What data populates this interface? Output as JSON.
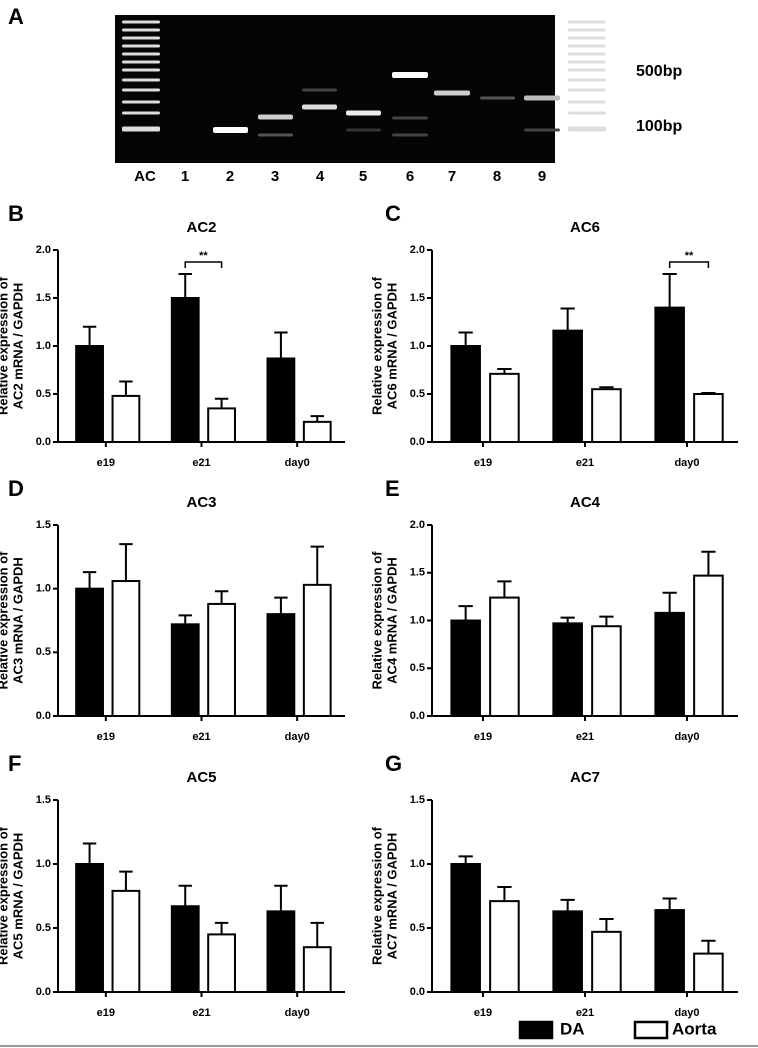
{
  "panel_a": {
    "panel": "A",
    "lanes": [
      "AC",
      "1",
      "2",
      "3",
      "4",
      "5",
      "6",
      "7",
      "8",
      "9"
    ],
    "markers": [
      "500bp",
      "100bp"
    ]
  },
  "chart_data": [
    {
      "panel": "B",
      "type": "bar",
      "title": "AC2",
      "y_label": [
        "Relative expression of",
        "AC2 mRNA / GAPDH"
      ],
      "categories": [
        "e19",
        "e21",
        "day0"
      ],
      "series": [
        {
          "color": "#000000",
          "values": [
            1.0,
            1.5,
            0.87
          ],
          "errors": [
            0.2,
            0.25,
            0.27
          ]
        },
        {
          "color": "#ffffff",
          "values": [
            0.48,
            0.35,
            0.21
          ],
          "errors": [
            0.15,
            0.1,
            0.06
          ]
        }
      ],
      "significance": [
        null,
        "**",
        null
      ],
      "ylim": [
        0,
        2
      ],
      "yticks": [
        {
          "value": 0,
          "label": "0.0"
        },
        {
          "value": 0.5,
          "label": "0.5"
        },
        {
          "value": 1,
          "label": "1.0"
        },
        {
          "value": 1.5,
          "label": "1.5"
        },
        {
          "value": 2,
          "label": "2.0"
        }
      ]
    },
    {
      "panel": "C",
      "type": "bar",
      "title": "AC6",
      "y_label": [
        "Relative expression of",
        "AC6 mRNA / GAPDH"
      ],
      "categories": [
        "e19",
        "e21",
        "day0"
      ],
      "series": [
        {
          "color": "#000000",
          "values": [
            1.0,
            1.16,
            1.4
          ],
          "errors": [
            0.14,
            0.23,
            0.35
          ]
        },
        {
          "color": "#ffffff",
          "values": [
            0.71,
            0.55,
            0.5
          ],
          "errors": [
            0.05,
            0.02,
            0.01
          ]
        }
      ],
      "significance": [
        null,
        null,
        "**"
      ],
      "ylim": [
        0,
        2
      ],
      "yticks": [
        {
          "value": 0,
          "label": "0.0"
        },
        {
          "value": 0.5,
          "label": "0.5"
        },
        {
          "value": 1,
          "label": "1.0"
        },
        {
          "value": 1.5,
          "label": "1.5"
        },
        {
          "value": 2,
          "label": "2.0"
        }
      ]
    },
    {
      "panel": "D",
      "type": "bar",
      "title": "AC3",
      "y_label": [
        "Relative expression of",
        "AC3 mRNA / GAPDH"
      ],
      "categories": [
        "e19",
        "e21",
        "day0"
      ],
      "series": [
        {
          "color": "#000000",
          "values": [
            1.0,
            0.72,
            0.8
          ],
          "errors": [
            0.13,
            0.07,
            0.13
          ]
        },
        {
          "color": "#ffffff",
          "values": [
            1.06,
            0.88,
            1.03
          ],
          "errors": [
            0.29,
            0.1,
            0.3
          ]
        }
      ],
      "ylim": [
        0,
        1.5
      ],
      "yticks": [
        {
          "value": 0,
          "label": "0.0"
        },
        {
          "value": 0.5,
          "label": "0.5"
        },
        {
          "value": 1,
          "label": "1.0"
        },
        {
          "value": 1.5,
          "label": "1.5"
        }
      ]
    },
    {
      "panel": "E",
      "type": "bar",
      "title": "AC4",
      "y_label": [
        "Relative expression of",
        "AC4 mRNA / GAPDH"
      ],
      "categories": [
        "e19",
        "e21",
        "day0"
      ],
      "series": [
        {
          "color": "#000000",
          "values": [
            1.0,
            0.97,
            1.08
          ],
          "errors": [
            0.15,
            0.06,
            0.21
          ]
        },
        {
          "color": "#ffffff",
          "values": [
            1.24,
            0.94,
            1.47
          ],
          "errors": [
            0.17,
            0.1,
            0.25
          ]
        }
      ],
      "ylim": [
        0,
        2
      ],
      "yticks": [
        {
          "value": 0,
          "label": "0.0"
        },
        {
          "value": 0.5,
          "label": "0.5"
        },
        {
          "value": 1,
          "label": "1.0"
        },
        {
          "value": 1.5,
          "label": "1.5"
        },
        {
          "value": 2,
          "label": "2.0"
        }
      ]
    },
    {
      "panel": "F",
      "type": "bar",
      "title": "AC5",
      "y_label": [
        "Relative expression of",
        "AC5 mRNA / GAPDH"
      ],
      "categories": [
        "e19",
        "e21",
        "day0"
      ],
      "series": [
        {
          "color": "#000000",
          "values": [
            1.0,
            0.67,
            0.63
          ],
          "errors": [
            0.16,
            0.16,
            0.2
          ]
        },
        {
          "color": "#ffffff",
          "values": [
            0.79,
            0.45,
            0.35
          ],
          "errors": [
            0.15,
            0.09,
            0.19
          ]
        }
      ],
      "ylim": [
        0,
        1.5
      ],
      "yticks": [
        {
          "value": 0,
          "label": "0.0"
        },
        {
          "value": 0.5,
          "label": "0.5"
        },
        {
          "value": 1,
          "label": "1.0"
        },
        {
          "value": 1.5,
          "label": "1.5"
        }
      ]
    },
    {
      "panel": "G",
      "type": "bar",
      "title": "AC7",
      "y_label": [
        "Relative expression of",
        "AC7 mRNA / GAPDH"
      ],
      "categories": [
        "e19",
        "e21",
        "day0"
      ],
      "series": [
        {
          "name": "DA",
          "color": "#000000",
          "values": [
            1.0,
            0.63,
            0.64
          ],
          "errors": [
            0.06,
            0.09,
            0.09
          ]
        },
        {
          "name": "Aorta",
          "color": "#ffffff",
          "values": [
            0.71,
            0.47,
            0.3
          ],
          "errors": [
            0.11,
            0.1,
            0.1
          ]
        }
      ],
      "legend": "bottom-right",
      "ylim": [
        0,
        1.5
      ],
      "yticks": [
        {
          "value": 0,
          "label": "0.0"
        },
        {
          "value": 0.5,
          "label": "0.5"
        },
        {
          "value": 1,
          "label": "1.0"
        },
        {
          "value": 1.5,
          "label": "1.5"
        }
      ]
    }
  ]
}
